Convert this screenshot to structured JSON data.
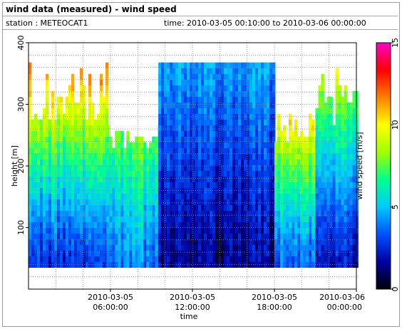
{
  "header": {
    "title": "wind data (measured) - wind speed",
    "station": "station : METEOCAT1",
    "time_range": "time: 2010-03-05 00:10:00 to 2010-03-06 00:00:00"
  },
  "chart_data": {
    "type": "heatmap",
    "xlabel": "time",
    "ylabel": "height [m]",
    "colorbar_label": "wind speed [m/s]",
    "x_range_hours": [
      0,
      24
    ],
    "ylim": [
      0,
      400
    ],
    "zlim": [
      0,
      15
    ],
    "x_ticks": [
      {
        "hour": 6,
        "line1": "2010-03-05",
        "line2": "06:00:00"
      },
      {
        "hour": 12,
        "line1": "2010-03-05",
        "line2": "12:00:00"
      },
      {
        "hour": 18,
        "line1": "2010-03-05",
        "line2": "18:00:00"
      },
      {
        "hour": 24,
        "line1": "2010-03-06",
        "line2": "00:00:00"
      }
    ],
    "y_ticks": [
      100,
      200,
      300,
      400
    ],
    "colorbar_ticks": [
      0,
      5,
      10,
      15
    ],
    "colormap": [
      "#000000",
      "#0000a0",
      "#0050ff",
      "#00c8ff",
      "#00ff90",
      "#a0ff00",
      "#ffff00",
      "#ff8000",
      "#ff0000",
      "#ff00c8"
    ],
    "column_profiles": [
      {
        "hour_start": 0.0,
        "hour_end": 5.7,
        "top_m": 360,
        "speed_low": 2.5,
        "speed_high": 11.5
      },
      {
        "hour_start": 5.7,
        "hour_end": 9.5,
        "top_m": 260,
        "speed_low": 4.0,
        "speed_high": 8.0
      },
      {
        "hour_start": 9.5,
        "hour_end": 18.0,
        "top_m": 365,
        "speed_low": 1.5,
        "speed_high": 4.5
      },
      {
        "hour_start": 18.0,
        "hour_end": 21.0,
        "top_m": 280,
        "speed_low": 3.5,
        "speed_high": 10.5
      },
      {
        "hour_start": 21.0,
        "hour_end": 24.0,
        "top_m": 360,
        "speed_low": 2.0,
        "speed_high": 9.0
      }
    ],
    "bottom_m": 35
  }
}
